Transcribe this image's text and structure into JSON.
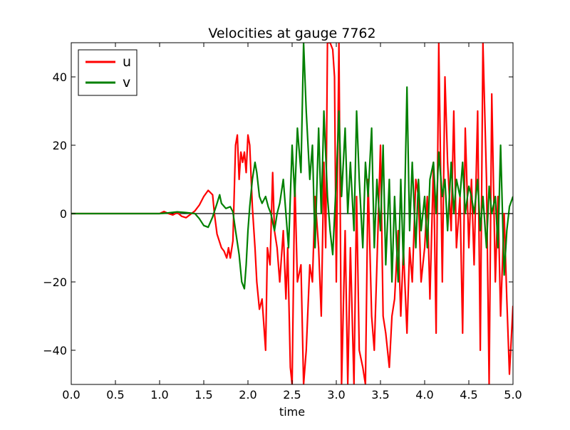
{
  "chart_data": {
    "type": "line",
    "title": "Velocities at gauge 7762",
    "xlabel": "time",
    "ylabel": "",
    "xlim": [
      0.0,
      5.0
    ],
    "ylim": [
      -50,
      50
    ],
    "x_ticks": [
      0.0,
      0.5,
      1.0,
      1.5,
      2.0,
      2.5,
      3.0,
      3.5,
      4.0,
      4.5,
      5.0
    ],
    "x_tick_labels": [
      "0.0",
      "0.5",
      "1.0",
      "1.5",
      "2.0",
      "2.5",
      "3.0",
      "3.5",
      "4.0",
      "4.5",
      "5.0"
    ],
    "y_ticks": [
      -40,
      -20,
      0,
      20,
      40
    ],
    "y_tick_labels": [
      "−40",
      "−20",
      "0",
      "20",
      "40"
    ],
    "grid": false,
    "legend_position": "top-left",
    "reference_line": {
      "y": 0,
      "color": "#000000"
    },
    "series": [
      {
        "name": "u",
        "color": "#ff0000",
        "points": [
          [
            0.0,
            0
          ],
          [
            0.5,
            0
          ],
          [
            1.0,
            0
          ],
          [
            1.05,
            0.6
          ],
          [
            1.1,
            0
          ],
          [
            1.15,
            -0.4
          ],
          [
            1.2,
            0.3
          ],
          [
            1.25,
            -0.8
          ],
          [
            1.3,
            -1.2
          ],
          [
            1.35,
            -0.2
          ],
          [
            1.4,
            0.8
          ],
          [
            1.45,
            2.5
          ],
          [
            1.5,
            5.0
          ],
          [
            1.55,
            6.8
          ],
          [
            1.6,
            5.5
          ],
          [
            1.62,
            0
          ],
          [
            1.65,
            -6
          ],
          [
            1.7,
            -10
          ],
          [
            1.73,
            -11
          ],
          [
            1.76,
            -13
          ],
          [
            1.78,
            -10
          ],
          [
            1.8,
            -13
          ],
          [
            1.83,
            -8
          ],
          [
            1.86,
            20
          ],
          [
            1.88,
            23
          ],
          [
            1.9,
            10
          ],
          [
            1.92,
            18
          ],
          [
            1.94,
            15
          ],
          [
            1.96,
            18
          ],
          [
            1.98,
            12
          ],
          [
            2.0,
            23
          ],
          [
            2.02,
            20
          ],
          [
            2.05,
            2
          ],
          [
            2.08,
            -10
          ],
          [
            2.1,
            -20
          ],
          [
            2.13,
            -28
          ],
          [
            2.16,
            -25
          ],
          [
            2.2,
            -40
          ],
          [
            2.22,
            -10
          ],
          [
            2.25,
            -15
          ],
          [
            2.28,
            12
          ],
          [
            2.3,
            -5
          ],
          [
            2.33,
            -10
          ],
          [
            2.36,
            -20
          ],
          [
            2.4,
            -5
          ],
          [
            2.43,
            -25
          ],
          [
            2.45,
            -10
          ],
          [
            2.48,
            -45
          ],
          [
            2.5,
            -50
          ],
          [
            2.53,
            10
          ],
          [
            2.56,
            -20
          ],
          [
            2.6,
            -15
          ],
          [
            2.63,
            -50
          ],
          [
            2.66,
            -40
          ],
          [
            2.7,
            -15
          ],
          [
            2.73,
            -20
          ],
          [
            2.76,
            5
          ],
          [
            2.8,
            -10
          ],
          [
            2.83,
            -30
          ],
          [
            2.86,
            15
          ],
          [
            2.88,
            -10
          ],
          [
            2.9,
            50
          ],
          [
            2.93,
            50
          ],
          [
            2.96,
            48
          ],
          [
            2.98,
            40
          ],
          [
            3.0,
            -20
          ],
          [
            3.03,
            50
          ],
          [
            3.06,
            -50
          ],
          [
            3.1,
            -5
          ],
          [
            3.13,
            -50
          ],
          [
            3.16,
            -10
          ],
          [
            3.2,
            -50
          ],
          [
            3.23,
            5
          ],
          [
            3.26,
            -40
          ],
          [
            3.3,
            -45
          ],
          [
            3.33,
            -50
          ],
          [
            3.36,
            10
          ],
          [
            3.4,
            -30
          ],
          [
            3.43,
            -40
          ],
          [
            3.46,
            -15
          ],
          [
            3.5,
            20
          ],
          [
            3.53,
            -30
          ],
          [
            3.56,
            -35
          ],
          [
            3.6,
            -45
          ],
          [
            3.63,
            -30
          ],
          [
            3.66,
            -25
          ],
          [
            3.7,
            -5
          ],
          [
            3.73,
            -30
          ],
          [
            3.76,
            -10
          ],
          [
            3.8,
            -35
          ],
          [
            3.83,
            -10
          ],
          [
            3.86,
            -20
          ],
          [
            3.9,
            10
          ],
          [
            3.93,
            5
          ],
          [
            3.96,
            -20
          ],
          [
            4.0,
            -10
          ],
          [
            4.03,
            5
          ],
          [
            4.06,
            -25
          ],
          [
            4.1,
            15
          ],
          [
            4.13,
            -35
          ],
          [
            4.16,
            50
          ],
          [
            4.2,
            -20
          ],
          [
            4.23,
            40
          ],
          [
            4.26,
            15
          ],
          [
            4.3,
            -5
          ],
          [
            4.33,
            30
          ],
          [
            4.36,
            -10
          ],
          [
            4.4,
            5
          ],
          [
            4.43,
            -35
          ],
          [
            4.46,
            25
          ],
          [
            4.5,
            -10
          ],
          [
            4.53,
            10
          ],
          [
            4.56,
            -15
          ],
          [
            4.6,
            30
          ],
          [
            4.63,
            -40
          ],
          [
            4.66,
            50
          ],
          [
            4.7,
            10
          ],
          [
            4.73,
            -50
          ],
          [
            4.76,
            35
          ],
          [
            4.8,
            -20
          ],
          [
            4.83,
            5
          ],
          [
            4.86,
            -30
          ],
          [
            4.9,
            0
          ],
          [
            4.93,
            -25
          ],
          [
            4.96,
            -47
          ],
          [
            5.0,
            -27
          ]
        ]
      },
      {
        "name": "v",
        "color": "#008000",
        "points": [
          [
            0.0,
            0
          ],
          [
            0.5,
            0
          ],
          [
            1.0,
            0
          ],
          [
            1.1,
            0.2
          ],
          [
            1.2,
            0.5
          ],
          [
            1.3,
            0.3
          ],
          [
            1.4,
            0
          ],
          [
            1.45,
            -1.5
          ],
          [
            1.5,
            -3.5
          ],
          [
            1.55,
            -4
          ],
          [
            1.6,
            -1
          ],
          [
            1.65,
            3
          ],
          [
            1.68,
            5.5
          ],
          [
            1.7,
            3
          ],
          [
            1.75,
            1.5
          ],
          [
            1.8,
            2
          ],
          [
            1.83,
            0.5
          ],
          [
            1.86,
            -5
          ],
          [
            1.9,
            -12
          ],
          [
            1.93,
            -20
          ],
          [
            1.96,
            -22
          ],
          [
            1.98,
            -15
          ],
          [
            2.0,
            -5
          ],
          [
            2.02,
            2
          ],
          [
            2.05,
            10
          ],
          [
            2.08,
            15
          ],
          [
            2.1,
            12
          ],
          [
            2.13,
            5
          ],
          [
            2.16,
            3
          ],
          [
            2.2,
            5
          ],
          [
            2.23,
            2
          ],
          [
            2.26,
            0
          ],
          [
            2.3,
            -5
          ],
          [
            2.33,
            0
          ],
          [
            2.36,
            3
          ],
          [
            2.4,
            10
          ],
          [
            2.43,
            0
          ],
          [
            2.46,
            -10
          ],
          [
            2.5,
            20
          ],
          [
            2.53,
            5
          ],
          [
            2.56,
            25
          ],
          [
            2.6,
            12
          ],
          [
            2.63,
            50
          ],
          [
            2.66,
            30
          ],
          [
            2.7,
            10
          ],
          [
            2.73,
            20
          ],
          [
            2.76,
            -10
          ],
          [
            2.8,
            25
          ],
          [
            2.83,
            0
          ],
          [
            2.86,
            30
          ],
          [
            2.9,
            5
          ],
          [
            2.93,
            -5
          ],
          [
            2.96,
            -12
          ],
          [
            3.0,
            10
          ],
          [
            3.03,
            30
          ],
          [
            3.06,
            5
          ],
          [
            3.1,
            25
          ],
          [
            3.13,
            0
          ],
          [
            3.16,
            15
          ],
          [
            3.2,
            -5
          ],
          [
            3.23,
            30
          ],
          [
            3.26,
            10
          ],
          [
            3.3,
            -10
          ],
          [
            3.33,
            15
          ],
          [
            3.36,
            5
          ],
          [
            3.4,
            25
          ],
          [
            3.43,
            -10
          ],
          [
            3.46,
            10
          ],
          [
            3.5,
            -5
          ],
          [
            3.53,
            20
          ],
          [
            3.56,
            -15
          ],
          [
            3.6,
            10
          ],
          [
            3.63,
            -20
          ],
          [
            3.66,
            5
          ],
          [
            3.7,
            -20
          ],
          [
            3.73,
            10
          ],
          [
            3.76,
            -15
          ],
          [
            3.8,
            37
          ],
          [
            3.83,
            -5
          ],
          [
            3.86,
            15
          ],
          [
            3.9,
            -10
          ],
          [
            3.93,
            10
          ],
          [
            3.96,
            -5
          ],
          [
            4.0,
            5
          ],
          [
            4.03,
            -10
          ],
          [
            4.06,
            10
          ],
          [
            4.1,
            15
          ],
          [
            4.13,
            0
          ],
          [
            4.16,
            18
          ],
          [
            4.2,
            5
          ],
          [
            4.23,
            10
          ],
          [
            4.26,
            -5
          ],
          [
            4.3,
            15
          ],
          [
            4.33,
            0
          ],
          [
            4.36,
            10
          ],
          [
            4.4,
            5
          ],
          [
            4.43,
            15
          ],
          [
            4.46,
            0
          ],
          [
            4.5,
            8
          ],
          [
            4.53,
            5
          ],
          [
            4.56,
            0
          ],
          [
            4.6,
            10
          ],
          [
            4.63,
            -5
          ],
          [
            4.66,
            5
          ],
          [
            4.7,
            -10
          ],
          [
            4.73,
            8
          ],
          [
            4.76,
            0
          ],
          [
            4.8,
            5
          ],
          [
            4.83,
            -10
          ],
          [
            4.86,
            20
          ],
          [
            4.9,
            -18
          ],
          [
            4.93,
            -5
          ],
          [
            4.96,
            2
          ],
          [
            5.0,
            5
          ]
        ]
      }
    ]
  }
}
